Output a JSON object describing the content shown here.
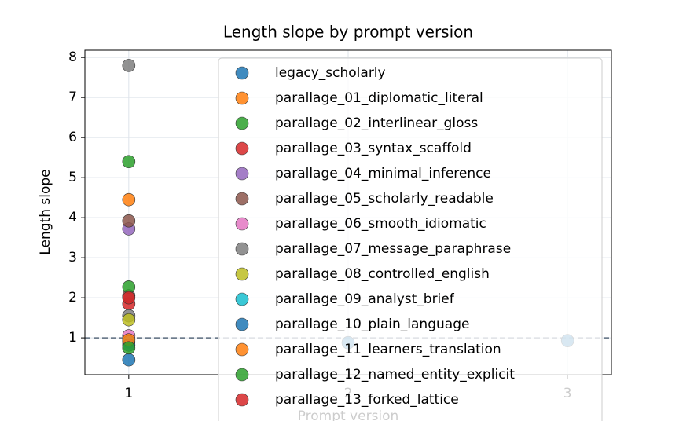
{
  "chart_data": {
    "type": "scatter",
    "title": "Length slope by prompt version",
    "x_label": "Prompt version",
    "y_label": "Length slope",
    "xlim": [
      0.8,
      3.2
    ],
    "xticks": [
      1,
      2,
      3
    ],
    "ylim": [
      0.08,
      8.18
    ],
    "yticks": [
      1,
      2,
      3,
      4,
      5,
      6,
      7,
      8
    ],
    "grid": true,
    "reference_line": 1,
    "legend_position": "upper right",
    "series": [
      {
        "name": "legacy_scholarly",
        "color": "#1f77b4",
        "x": [
          1,
          2,
          3
        ],
        "values": [
          0.45,
          0.88,
          0.93
        ]
      },
      {
        "name": "parallage_01_diplomatic_literal",
        "color": "#ff7f0e",
        "x": [
          1
        ],
        "values": [
          4.45
        ]
      },
      {
        "name": "parallage_02_interlinear_gloss",
        "color": "#2ca02c",
        "x": [
          1
        ],
        "values": [
          5.4
        ]
      },
      {
        "name": "parallage_03_syntax_scaffold",
        "color": "#d62728",
        "x": [
          1
        ],
        "values": [
          1.85
        ]
      },
      {
        "name": "parallage_04_minimal_inference",
        "color": "#9467bd",
        "x": [
          1
        ],
        "values": [
          3.72
        ]
      },
      {
        "name": "parallage_05_scholarly_readable",
        "color": "#8c564b",
        "x": [
          1,
          1
        ],
        "values": [
          3.92,
          2.05
        ]
      },
      {
        "name": "parallage_06_smooth_idiomatic",
        "color": "#e377c2",
        "x": [
          1
        ],
        "values": [
          1.05
        ]
      },
      {
        "name": "parallage_07_message_paraphrase",
        "color": "#7f7f7f",
        "x": [
          1,
          1
        ],
        "values": [
          7.8,
          1.55
        ]
      },
      {
        "name": "parallage_08_controlled_english",
        "color": "#bcbd22",
        "x": [
          1
        ],
        "values": [
          1.45
        ]
      },
      {
        "name": "parallage_09_analyst_brief",
        "color": "#17becf",
        "x": [
          1
        ],
        "values": [
          0.9
        ]
      },
      {
        "name": "parallage_10_plain_language",
        "color": "#1f77b4",
        "x": [
          1
        ],
        "values": [
          0.82
        ]
      },
      {
        "name": "parallage_11_learners_translation",
        "color": "#ff7f0e",
        "x": [
          1
        ],
        "values": [
          0.95
        ]
      },
      {
        "name": "parallage_12_named_entity_explicit",
        "color": "#2ca02c",
        "x": [
          1,
          1
        ],
        "values": [
          2.27,
          0.75
        ]
      },
      {
        "name": "parallage_13_forked_lattice",
        "color": "#d62728",
        "x": [
          1
        ],
        "values": [
          2.0
        ]
      }
    ]
  }
}
